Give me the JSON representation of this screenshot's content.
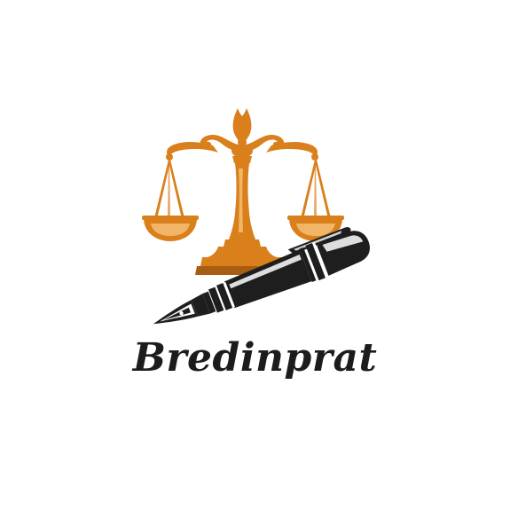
{
  "logo": {
    "brand_name": "Bredinprat",
    "icons": [
      "scales-of-justice-icon",
      "fountain-pen-icon"
    ],
    "colors": {
      "scales": "#D9801C",
      "scales_dark": "#A85E12",
      "pen": "#1E1E1E",
      "pen_highlight": "#FFFFFF",
      "text": "#1C1C1C",
      "background": "#FFFFFF"
    }
  }
}
